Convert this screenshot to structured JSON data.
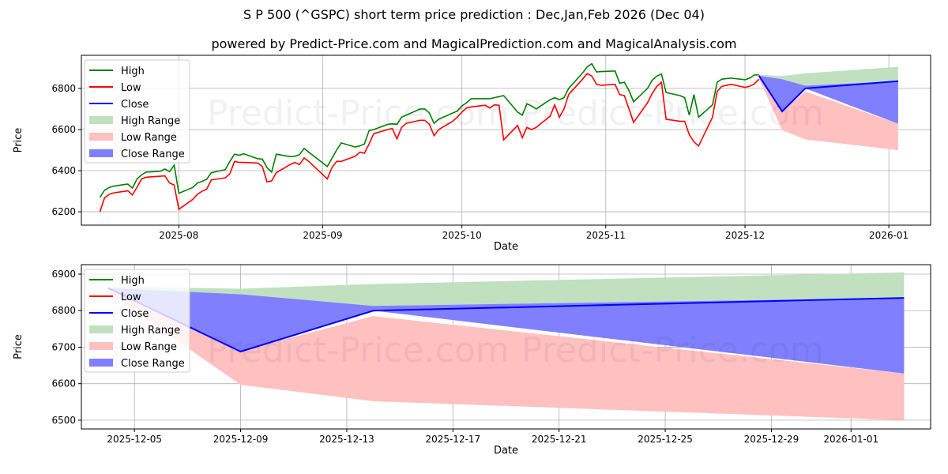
{
  "title": "S P 500 (^GSPC) short term price prediction : Dec,Jan,Feb 2026 (Dec 04)",
  "subtitle": "powered by Predict-Price.com and MagicalPrediction.com and MagicalAnalysis.com",
  "watermark": "Predict-Price.com",
  "colors": {
    "high": "#008000",
    "low": "#ff0000",
    "close": "#0000ff",
    "high_range": "#c0e0c0",
    "low_range": "#ffc0c0",
    "close_range": "#8080ff"
  },
  "legend": [
    "High",
    "Low",
    "Close",
    "High Range",
    "Low Range",
    "Close Range"
  ],
  "chart_data": [
    {
      "type": "line",
      "panel": "top",
      "xlabel": "Date",
      "ylabel": "Price",
      "xlim": [
        "2025-07-11",
        "2026-01-10"
      ],
      "ylim": [
        6135,
        6961
      ],
      "grid": true,
      "legend_placement": "top-left",
      "xticks": [
        "2025-08",
        "2025-09",
        "2025-10",
        "2025-11",
        "2025-12",
        "2026-01"
      ],
      "yticks": [
        6200,
        6400,
        6600,
        6800
      ],
      "history_columns": [
        "date",
        "high",
        "low"
      ],
      "history": [
        [
          "2025-07-15",
          6270,
          6200
        ],
        [
          "2025-07-16",
          6305,
          6268
        ],
        [
          "2025-07-17",
          6318,
          6285
        ],
        [
          "2025-07-18",
          6325,
          6292
        ],
        [
          "2025-07-21",
          6335,
          6302
        ],
        [
          "2025-07-22",
          6315,
          6282
        ],
        [
          "2025-07-23",
          6360,
          6320
        ],
        [
          "2025-07-24",
          6380,
          6360
        ],
        [
          "2025-07-25",
          6393,
          6368
        ],
        [
          "2025-07-28",
          6397,
          6373
        ],
        [
          "2025-07-29",
          6408,
          6375
        ],
        [
          "2025-07-30",
          6395,
          6340
        ],
        [
          "2025-07-31",
          6427,
          6330
        ],
        [
          "2025-08-01",
          6290,
          6212
        ],
        [
          "2025-08-04",
          6318,
          6260
        ],
        [
          "2025-08-05",
          6340,
          6285
        ],
        [
          "2025-08-06",
          6348,
          6300
        ],
        [
          "2025-08-07",
          6358,
          6310
        ],
        [
          "2025-08-08",
          6390,
          6355
        ],
        [
          "2025-08-11",
          6405,
          6365
        ],
        [
          "2025-08-12",
          6445,
          6385
        ],
        [
          "2025-08-13",
          6480,
          6445
        ],
        [
          "2025-08-14",
          6475,
          6440
        ],
        [
          "2025-08-15",
          6482,
          6440
        ],
        [
          "2025-08-18",
          6458,
          6437
        ],
        [
          "2025-08-19",
          6456,
          6420
        ],
        [
          "2025-08-20",
          6415,
          6345
        ],
        [
          "2025-08-21",
          6393,
          6350
        ],
        [
          "2025-08-22",
          6480,
          6390
        ],
        [
          "2025-08-25",
          6468,
          6430
        ],
        [
          "2025-08-26",
          6470,
          6440
        ],
        [
          "2025-08-27",
          6478,
          6430
        ],
        [
          "2025-08-28",
          6508,
          6462
        ],
        [
          "2025-08-29",
          6490,
          6445
        ],
        [
          "2025-09-02",
          6420,
          6360
        ],
        [
          "2025-09-03",
          6460,
          6415
        ],
        [
          "2025-09-04",
          6500,
          6445
        ],
        [
          "2025-09-05",
          6535,
          6445
        ],
        [
          "2025-09-08",
          6515,
          6470
        ],
        [
          "2025-09-09",
          6520,
          6490
        ],
        [
          "2025-09-10",
          6530,
          6485
        ],
        [
          "2025-09-11",
          6595,
          6530
        ],
        [
          "2025-09-12",
          6600,
          6580
        ],
        [
          "2025-09-15",
          6625,
          6600
        ],
        [
          "2025-09-16",
          6628,
          6605
        ],
        [
          "2025-09-17",
          6625,
          6555
        ],
        [
          "2025-09-18",
          6660,
          6610
        ],
        [
          "2025-09-19",
          6670,
          6630
        ],
        [
          "2025-09-22",
          6700,
          6645
        ],
        [
          "2025-09-23",
          6700,
          6645
        ],
        [
          "2025-09-24",
          6680,
          6625
        ],
        [
          "2025-09-25",
          6630,
          6570
        ],
        [
          "2025-09-26",
          6650,
          6600
        ],
        [
          "2025-09-29",
          6680,
          6640
        ],
        [
          "2025-09-30",
          6690,
          6660
        ],
        [
          "2025-10-01",
          6715,
          6685
        ],
        [
          "2025-10-02",
          6730,
          6705
        ],
        [
          "2025-10-03",
          6750,
          6710
        ],
        [
          "2025-10-06",
          6750,
          6718
        ],
        [
          "2025-10-07",
          6750,
          6705
        ],
        [
          "2025-10-08",
          6755,
          6720
        ],
        [
          "2025-10-09",
          6760,
          6718
        ],
        [
          "2025-10-10",
          6765,
          6550
        ],
        [
          "2025-10-13",
          6685,
          6620
        ],
        [
          "2025-10-14",
          6670,
          6560
        ],
        [
          "2025-10-15",
          6725,
          6610
        ],
        [
          "2025-10-16",
          6715,
          6600
        ],
        [
          "2025-10-17",
          6700,
          6610
        ],
        [
          "2025-10-20",
          6745,
          6665
        ],
        [
          "2025-10-21",
          6755,
          6720
        ],
        [
          "2025-10-22",
          6745,
          6660
        ],
        [
          "2025-10-23",
          6755,
          6700
        ],
        [
          "2025-10-24",
          6800,
          6770
        ],
        [
          "2025-10-27",
          6875,
          6845
        ],
        [
          "2025-10-28",
          6905,
          6872
        ],
        [
          "2025-10-29",
          6920,
          6860
        ],
        [
          "2025-10-30",
          6880,
          6820
        ],
        [
          "2025-10-31",
          6882,
          6815
        ],
        [
          "2025-11-03",
          6885,
          6820
        ],
        [
          "2025-11-04",
          6825,
          6770
        ],
        [
          "2025-11-05",
          6830,
          6765
        ],
        [
          "2025-11-06",
          6790,
          6700
        ],
        [
          "2025-11-07",
          6735,
          6635
        ],
        [
          "2025-11-10",
          6800,
          6730
        ],
        [
          "2025-11-11",
          6840,
          6775
        ],
        [
          "2025-11-12",
          6860,
          6810
        ],
        [
          "2025-11-13",
          6870,
          6830
        ],
        [
          "2025-11-14",
          6780,
          6650
        ],
        [
          "2025-11-17",
          6765,
          6640
        ],
        [
          "2025-11-18",
          6755,
          6640
        ],
        [
          "2025-11-19",
          6670,
          6575
        ],
        [
          "2025-11-20",
          6770,
          6540
        ],
        [
          "2025-11-21",
          6660,
          6520
        ],
        [
          "2025-11-24",
          6720,
          6660
        ],
        [
          "2025-11-25",
          6830,
          6785
        ],
        [
          "2025-11-26",
          6845,
          6810
        ],
        [
          "2025-11-28",
          6850,
          6820
        ],
        [
          "2025-12-01",
          6842,
          6805
        ],
        [
          "2025-12-02",
          6850,
          6810
        ],
        [
          "2025-12-03",
          6865,
          6822
        ],
        [
          "2025-12-04",
          6866,
          6845
        ]
      ]
    },
    {
      "type": "line",
      "panel": "bottom",
      "xlabel": "Date",
      "ylabel": "Price",
      "xlim": [
        "2025-12-03",
        "2026-01-04"
      ],
      "ylim": [
        6476,
        6926
      ],
      "grid": true,
      "legend_placement": "top-left",
      "xticks": [
        "2025-12-05",
        "2025-12-09",
        "2025-12-13",
        "2025-12-17",
        "2025-12-21",
        "2025-12-25",
        "2025-12-29",
        "2026-01-01"
      ],
      "yticks": [
        6500,
        6600,
        6700,
        6800,
        6900
      ]
    }
  ],
  "forecast": {
    "dates": [
      "2025-12-04",
      "2025-12-09",
      "2025-12-14",
      "2026-01-03"
    ],
    "close": [
      6862,
      6688,
      6800,
      6835
    ],
    "high_range": {
      "lower": [
        6862,
        6845,
        6813,
        6835
      ],
      "upper": [
        6866,
        6860,
        6873,
        6905
      ]
    },
    "low_range": {
      "lower": [
        6850,
        6597,
        6552,
        6500
      ],
      "upper": [
        6862,
        6690,
        6785,
        6628
      ]
    },
    "close_range": {
      "lower": [
        6860,
        6688,
        6800,
        6628
      ],
      "upper": [
        6862,
        6845,
        6813,
        6835
      ]
    }
  }
}
